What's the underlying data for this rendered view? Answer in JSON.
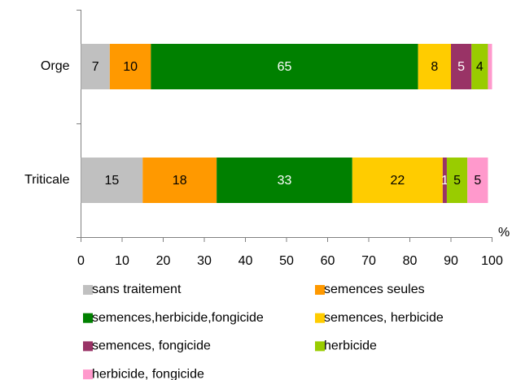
{
  "chart_data": {
    "type": "stacked-barh",
    "categories": [
      "Orge",
      "Triticale"
    ],
    "xlabel": "%",
    "xlim": [
      0,
      100
    ],
    "xticks": [
      0,
      10,
      20,
      30,
      40,
      50,
      60,
      70,
      80,
      90,
      100
    ],
    "grid": false,
    "legend": "bottom",
    "series": [
      {
        "name": "sans traitement",
        "color": "#c0c0c0",
        "label_color": "#000000",
        "values": [
          7,
          15
        ]
      },
      {
        "name": "semences seules",
        "color": "#ff9900",
        "label_color": "#000000",
        "values": [
          10,
          18
        ]
      },
      {
        "name": "semences,herbicide,fongicide",
        "color": "#008000",
        "label_color": "#ffffff",
        "values": [
          65,
          33
        ]
      },
      {
        "name": "semences, herbicide",
        "color": "#ffcc00",
        "label_color": "#000000",
        "values": [
          8,
          22
        ]
      },
      {
        "name": "semences, fongicide",
        "color": "#993366",
        "label_color": "#ffffff",
        "values": [
          5,
          1
        ]
      },
      {
        "name": "herbicide",
        "color": "#99cc00",
        "label_color": "#000000",
        "values": [
          4,
          5
        ]
      },
      {
        "name": "herbicide, fongicide",
        "color": "#ff99cc",
        "label_color": "#000000",
        "values": [
          1,
          5
        ],
        "value_labels": [
          null,
          "5"
        ]
      }
    ]
  }
}
